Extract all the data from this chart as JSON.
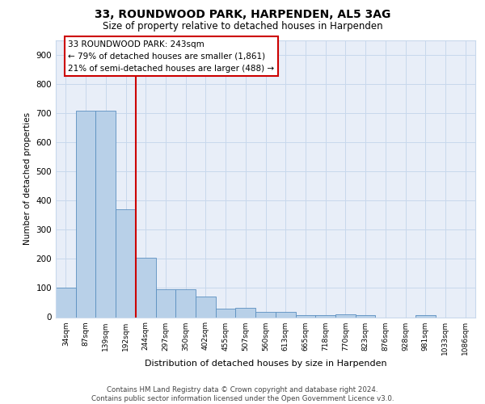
{
  "title1": "33, ROUNDWOOD PARK, HARPENDEN, AL5 3AG",
  "title2": "Size of property relative to detached houses in Harpenden",
  "xlabel": "Distribution of detached houses by size in Harpenden",
  "ylabel": "Number of detached properties",
  "categories": [
    "34sqm",
    "87sqm",
    "139sqm",
    "192sqm",
    "244sqm",
    "297sqm",
    "350sqm",
    "402sqm",
    "455sqm",
    "507sqm",
    "560sqm",
    "613sqm",
    "665sqm",
    "718sqm",
    "770sqm",
    "823sqm",
    "876sqm",
    "928sqm",
    "981sqm",
    "1033sqm",
    "1086sqm"
  ],
  "values": [
    101,
    710,
    710,
    370,
    205,
    95,
    95,
    70,
    28,
    33,
    18,
    18,
    7,
    8,
    10,
    7,
    0,
    0,
    8,
    0,
    0
  ],
  "bar_color": "#b8d0e8",
  "bar_edge_color": "#5a8fc0",
  "grid_color": "#c8d8ec",
  "background_color": "#e8eef8",
  "annotation_line1": "33 ROUNDWOOD PARK: 243sqm",
  "annotation_line2": "← 79% of detached houses are smaller (1,861)",
  "annotation_line3": "21% of semi-detached houses are larger (488) →",
  "annotation_bar_index": 4,
  "vline_color": "#cc0000",
  "rect_edge_color": "#cc0000",
  "footer_line1": "Contains HM Land Registry data © Crown copyright and database right 2024.",
  "footer_line2": "Contains public sector information licensed under the Open Government Licence v3.0.",
  "ylim": [
    0,
    950
  ],
  "yticks": [
    0,
    100,
    200,
    300,
    400,
    500,
    600,
    700,
    800,
    900
  ]
}
